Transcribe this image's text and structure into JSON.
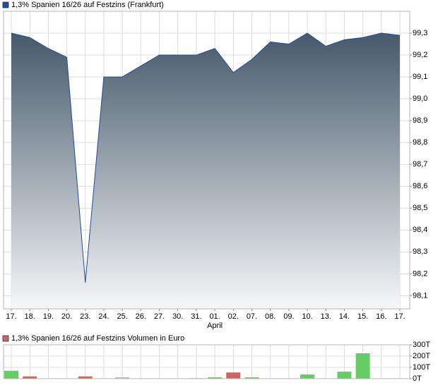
{
  "chart_data": [
    {
      "type": "area",
      "legend": "1,3% Spanien 16/26 auf Festzins (Frankfurt)",
      "color": "#1f4e9c",
      "fill_top": "#46596a",
      "fill_bottom": "#f6f7f9",
      "categories": [
        "17.",
        "18.",
        "19.",
        "20.",
        "23.",
        "24.",
        "25.",
        "26.",
        "27.",
        "30.",
        "31.",
        "01.",
        "02.",
        "07.",
        "08.",
        "09.",
        "10.",
        "13.",
        "14.",
        "15.",
        "16.",
        "17."
      ],
      "values": [
        99.3,
        99.28,
        99.23,
        99.19,
        98.16,
        99.1,
        99.1,
        99.15,
        99.2,
        99.2,
        99.2,
        99.23,
        99.12,
        99.18,
        99.26,
        99.25,
        99.3,
        99.24,
        99.27,
        99.28,
        99.3,
        99.29
      ],
      "annotations": [
        {
          "text": "April",
          "at": "01."
        }
      ],
      "ylim": [
        98.04,
        99.4
      ],
      "yticks": [
        {
          "value": 98.1,
          "label": "98,1"
        },
        {
          "value": 98.2,
          "label": "98,2"
        },
        {
          "value": 98.3,
          "label": "98,3"
        },
        {
          "value": 98.4,
          "label": "98,4"
        },
        {
          "value": 98.5,
          "label": "98,5"
        },
        {
          "value": 98.6,
          "label": "98,6"
        },
        {
          "value": 98.7,
          "label": "98,7"
        },
        {
          "value": 98.8,
          "label": "98,8"
        },
        {
          "value": 98.9,
          "label": "98,9"
        },
        {
          "value": 99.0,
          "label": "99,0"
        },
        {
          "value": 99.1,
          "label": "99,1"
        },
        {
          "value": 99.2,
          "label": "99,2"
        },
        {
          "value": 99.3,
          "label": "99,3"
        }
      ],
      "grid": true
    },
    {
      "type": "bar",
      "legend": "1,3% Spanien 16/26 auf Festzins Volumen in Euro",
      "color": "#cc6666",
      "values": [
        70000,
        20000,
        0,
        0,
        20000,
        0,
        12000,
        0,
        0,
        0,
        5000,
        12000,
        55000,
        12000,
        0,
        0,
        37000,
        0,
        62000,
        225000,
        0,
        0
      ],
      "colors": [
        "#66cc66",
        "#cc6666",
        "#bbbbbb",
        "#bbbbbb",
        "#cc6666",
        "#bbbbbb",
        "#bbbbbb",
        "#bbbbbb",
        "#bbbbbb",
        "#bbbbbb",
        "#bbbbbb",
        "#66cc66",
        "#cc6666",
        "#66cc66",
        "#bbbbbb",
        "#bbbbbb",
        "#66cc66",
        "#bbbbbb",
        "#66cc66",
        "#66cc66",
        "#bbbbbb",
        "#bbbbbb"
      ],
      "ylim": [
        0,
        300000
      ],
      "yticks": [
        {
          "value": 0,
          "label": "0T"
        },
        {
          "value": 100000,
          "label": "100T"
        },
        {
          "value": 200000,
          "label": "200T"
        },
        {
          "value": 300000,
          "label": "300T"
        }
      ],
      "grid": true
    }
  ]
}
